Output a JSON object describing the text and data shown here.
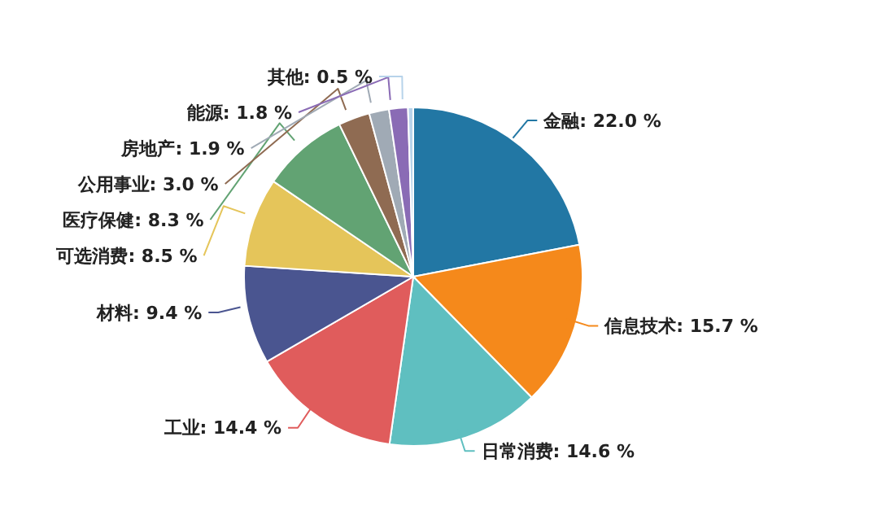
{
  "chart_data": {
    "type": "pie",
    "categories": [
      "金融",
      "信息技术",
      "日常消费",
      "工业",
      "材料",
      "可选消费",
      "医疗保健",
      "公用事业",
      "房地产",
      "能源",
      "其他"
    ],
    "values": [
      22.0,
      15.7,
      14.6,
      14.4,
      9.4,
      8.5,
      8.3,
      3.0,
      1.9,
      1.8,
      0.5
    ],
    "value_labels": [
      "22.0 %",
      "15.7 %",
      "14.6 %",
      "14.4 %",
      "9.4 %",
      "8.5 %",
      "8.3 %",
      "3.0 %",
      "1.9 %",
      "1.8 %",
      "0.5 %"
    ],
    "colors": [
      "#2277a4",
      "#f5891b",
      "#5fbfc0",
      "#e05c5c",
      "#4a5590",
      "#e5c55a",
      "#62a373",
      "#8f6b52",
      "#a0aab5",
      "#8a6bb5",
      "#b7d3ea"
    ],
    "legend": false
  }
}
